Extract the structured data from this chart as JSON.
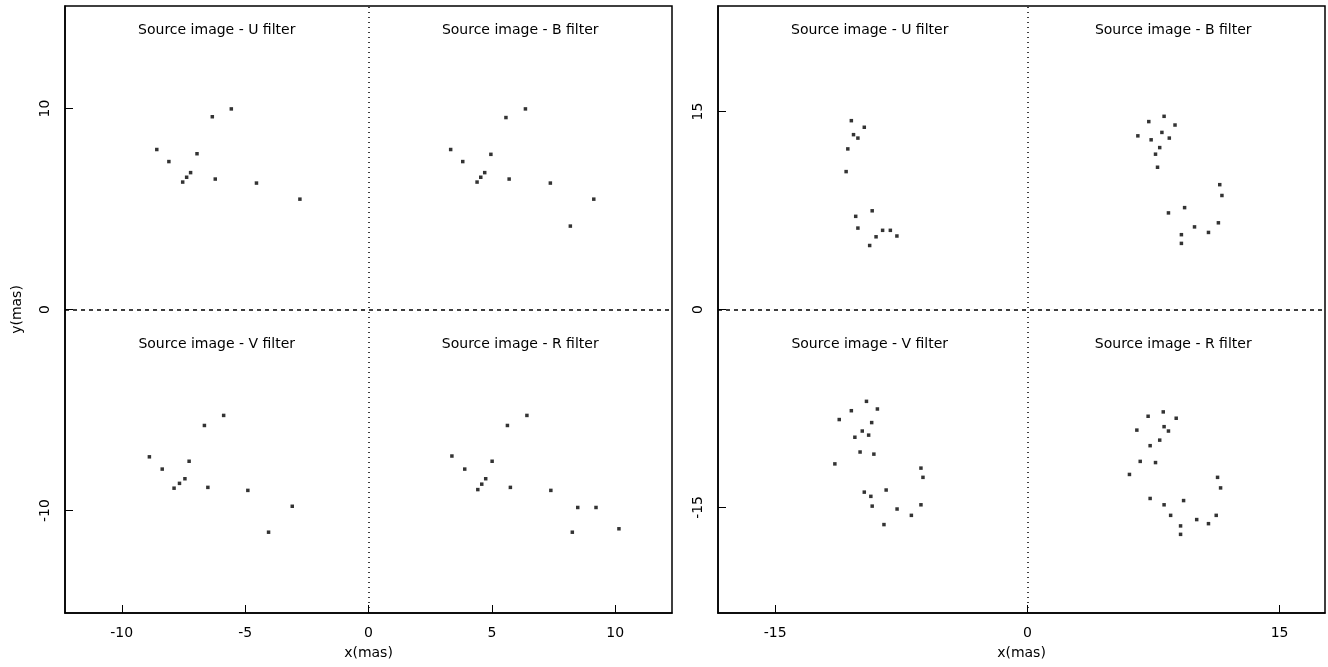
{
  "chart_data": [
    {
      "type": "scatter",
      "xlabel": "x(mas)",
      "ylabel": "y(mas)",
      "xlim": [
        -12.3,
        12.3
      ],
      "ylim": [
        -15.1,
        15.1
      ],
      "xticks": [
        -10,
        -5,
        0,
        5,
        10
      ],
      "yticks": [
        -10,
        0,
        10
      ],
      "grid": false,
      "legend": false,
      "marker": "square",
      "annotations": [
        "Source image - U filter",
        "Source image - B filter",
        "Source image - V filter",
        "Source image - R filter"
      ],
      "ref_lines": [
        {
          "axis": "x",
          "value": 0,
          "line_style": "dotted",
          "color": "#000000"
        },
        {
          "axis": "y",
          "value": 0,
          "line_style": "dashed",
          "color": "#000000"
        }
      ],
      "series": [
        {
          "color": "#000000",
          "x": [
            -8.58,
            -8.09,
            -7.53,
            -7.37,
            -7.21,
            -6.95,
            -6.33,
            -5.56,
            -6.21,
            -4.54,
            -2.78
          ],
          "values": [
            7.96,
            7.36,
            6.34,
            6.58,
            6.81,
            7.75,
            9.59,
            9.98,
            6.49,
            6.29,
            5.49
          ]
        },
        {
          "color": "#000000",
          "x": [
            3.33,
            3.82,
            4.4,
            4.55,
            4.71,
            4.96,
            5.57,
            6.36,
            5.7,
            7.37,
            9.13,
            8.18
          ],
          "values": [
            7.96,
            7.36,
            6.34,
            6.58,
            6.81,
            7.72,
            9.55,
            9.98,
            6.49,
            6.29,
            5.49,
            4.15
          ]
        },
        {
          "color": "#000000",
          "x": [
            -8.88,
            -8.36,
            -7.88,
            -7.66,
            -7.44,
            -7.27,
            -6.65,
            -5.87,
            -6.51,
            -4.89,
            -3.09,
            -4.05
          ],
          "values": [
            -7.33,
            -7.94,
            -8.89,
            -8.65,
            -8.42,
            -7.55,
            -5.77,
            -5.27,
            -8.85,
            -9.0,
            -9.79,
            -11.08
          ]
        },
        {
          "color": "#000000",
          "x": [
            3.38,
            3.9,
            4.43,
            4.59,
            4.75,
            5.01,
            5.63,
            6.42,
            5.75,
            7.39,
            8.48,
            9.22,
            8.26,
            10.15
          ],
          "values": [
            -7.29,
            -7.94,
            -8.96,
            -8.69,
            -8.42,
            -7.55,
            -5.77,
            -5.27,
            -8.85,
            -9.0,
            -9.85,
            -9.85,
            -11.08,
            -10.91
          ]
        }
      ]
    },
    {
      "type": "scatter",
      "xlabel": "x(mas)",
      "xlim": [
        -18.4,
        17.7
      ],
      "ylim": [
        -23,
        23
      ],
      "xticks": [
        -15,
        0,
        15
      ],
      "yticks": [
        -15,
        0,
        15
      ],
      "grid": false,
      "legend": false,
      "marker": "square",
      "annotations": [
        "Source image - U filter",
        "Source image - B filter",
        "Source image - V filter",
        "Source image - R filter"
      ],
      "ref_lines": [
        {
          "axis": "x",
          "value": 0,
          "line_style": "dotted",
          "color": "#000000"
        },
        {
          "axis": "y",
          "value": 0,
          "line_style": "dashed",
          "color": "#000000"
        }
      ],
      "series": [
        {
          "color": "#000000",
          "x": [
            -10.47,
            -9.7,
            -10.08,
            -10.34,
            -10.68,
            -10.78,
            -10.21,
            -10.08,
            -9.23,
            -9.38,
            -9.0,
            -8.61,
            -8.15,
            -7.76
          ],
          "values": [
            14.31,
            13.81,
            12.99,
            13.25,
            12.17,
            10.45,
            7.06,
            6.17,
            7.48,
            4.85,
            5.51,
            6.0,
            6.0,
            5.57
          ]
        },
        {
          "color": "#000000",
          "x": [
            7.22,
            8.13,
            8.78,
            6.57,
            8.0,
            7.36,
            8.44,
            7.87,
            7.62,
            7.74,
            11.44,
            11.57,
            8.39,
            9.35,
            9.16,
            9.16,
            9.94,
            10.77,
            11.36
          ],
          "values": [
            14.24,
            14.64,
            13.98,
            13.16,
            13.42,
            12.86,
            12.99,
            12.27,
            11.77,
            10.78,
            9.46,
            8.64,
            7.32,
            7.72,
            5.67,
            5.01,
            6.26,
            5.84,
            6.57
          ]
        },
        {
          "color": "#000000",
          "x": [
            -9.57,
            -8.92,
            -10.47,
            -11.19,
            -9.26,
            -9.82,
            -9.44,
            -10.26,
            -9.95,
            -9.13,
            -11.45,
            -6.33,
            -6.21,
            -9.7,
            -9.31,
            -8.4,
            -9.23,
            -7.75,
            -6.9,
            -6.33,
            -8.53
          ],
          "values": [
            -6.96,
            -7.54,
            -7.67,
            -8.34,
            -8.57,
            -9.21,
            -9.52,
            -9.68,
            -10.8,
            -10.96,
            -11.7,
            -12.02,
            -12.72,
            -13.84,
            -14.16,
            -13.68,
            -14.9,
            -15.12,
            -15.6,
            -14.8,
            -16.3
          ]
        },
        {
          "color": "#000000",
          "x": [
            8.08,
            8.85,
            7.18,
            6.51,
            8.13,
            7.87,
            8.39,
            7.3,
            6.71,
            7.62,
            6.07,
            11.31,
            11.49,
            7.3,
            8.13,
            9.29,
            8.52,
            9.11,
            9.11,
            10.07,
            10.77,
            11.23
          ],
          "values": [
            -7.76,
            -8.24,
            -8.09,
            -9.14,
            -8.88,
            -9.9,
            -9.21,
            -10.32,
            -11.51,
            -11.6,
            -12.5,
            -12.72,
            -13.52,
            -14.32,
            -14.8,
            -14.48,
            -15.6,
            -16.4,
            -17.04,
            -15.92,
            -16.23,
            -15.6
          ]
        }
      ]
    }
  ]
}
